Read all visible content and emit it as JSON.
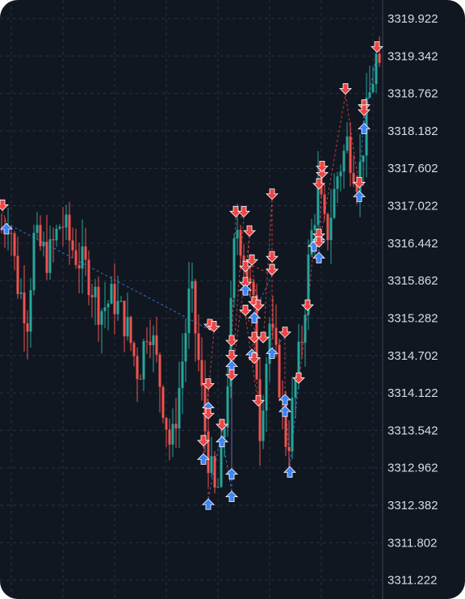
{
  "chart_data": {
    "type": "candlestick",
    "title": "",
    "xlabel": "",
    "ylabel": "",
    "ylim": [
      3310.93,
      3320.21
    ],
    "grid": true,
    "y_axis_side": "right",
    "y_tick_labels": [
      "3319.922",
      "3319.342",
      "3318.762",
      "3318.182",
      "3317.602",
      "3317.022",
      "3316.442",
      "3315.862",
      "3315.282",
      "3314.702",
      "3314.122",
      "3313.542",
      "3312.962",
      "3312.382",
      "3311.802",
      "3311.222"
    ],
    "colors": {
      "background": "#111721",
      "grid": "#2a313d",
      "up": "#26a69a",
      "down": "#ef5350",
      "buy_marker": "#3d84f7",
      "sell_marker": "#ef4545",
      "axis_text": "#d7dbe2"
    },
    "trade_markers": [
      {
        "type": "sell",
        "price": 3316.95
      },
      {
        "type": "buy",
        "price": 3316.75
      },
      {
        "type": "sell",
        "price": 3315.1
      },
      {
        "type": "sell",
        "price": 3315.07
      },
      {
        "type": "sell",
        "price": 3313.3
      },
      {
        "type": "buy",
        "price": 3313.18
      },
      {
        "type": "sell",
        "price": 3314.18
      },
      {
        "type": "buy",
        "price": 3313.98
      },
      {
        "type": "sell",
        "price": 3313.72
      },
      {
        "type": "buy",
        "price": 3312.48
      },
      {
        "type": "sell",
        "price": 3313.55
      },
      {
        "type": "buy",
        "price": 3313.45
      },
      {
        "type": "buy",
        "price": 3312.6
      },
      {
        "type": "sell",
        "price": 3314.62
      },
      {
        "type": "buy",
        "price": 3312.95
      },
      {
        "type": "buy",
        "price": 3314.62
      },
      {
        "type": "sell",
        "price": 3314.85
      },
      {
        "type": "sell",
        "price": 3316.85
      },
      {
        "type": "sell",
        "price": 3316.85
      },
      {
        "type": "sell",
        "price": 3314.32
      },
      {
        "type": "sell",
        "price": 3316.0
      },
      {
        "type": "sell",
        "price": 3316.55
      },
      {
        "type": "sell",
        "price": 3315.75
      },
      {
        "type": "buy",
        "price": 3315.8
      },
      {
        "type": "sell",
        "price": 3315.45
      },
      {
        "type": "buy",
        "price": 3315.37
      },
      {
        "type": "sell",
        "price": 3315.95
      },
      {
        "type": "sell",
        "price": 3316.1
      },
      {
        "type": "sell",
        "price": 3315.4
      },
      {
        "type": "buy",
        "price": 3314.8
      },
      {
        "type": "sell",
        "price": 3314.58
      },
      {
        "type": "sell",
        "price": 3314.9
      },
      {
        "type": "sell",
        "price": 3313.92
      },
      {
        "type": "sell",
        "price": 3315.32
      },
      {
        "type": "sell",
        "price": 3314.9
      },
      {
        "type": "sell",
        "price": 3317.12
      },
      {
        "type": "sell",
        "price": 3316.15
      },
      {
        "type": "sell",
        "price": 3315.95
      },
      {
        "type": "buy",
        "price": 3314.82
      },
      {
        "type": "sell",
        "price": 3314.98
      },
      {
        "type": "buy",
        "price": 3313.92
      },
      {
        "type": "buy",
        "price": 3314.1
      },
      {
        "type": "buy",
        "price": 3312.98
      },
      {
        "type": "sell",
        "price": 3314.27
      },
      {
        "type": "sell",
        "price": 3315.4
      },
      {
        "type": "buy",
        "price": 3316.48
      },
      {
        "type": "buy",
        "price": 3316.58
      },
      {
        "type": "sell",
        "price": 3316.5
      },
      {
        "type": "buy",
        "price": 3316.3
      },
      {
        "type": "sell",
        "price": 3317.45
      },
      {
        "type": "sell",
        "price": 3317.28
      },
      {
        "type": "sell",
        "price": 3317.55
      },
      {
        "type": "sell",
        "price": 3316.38
      },
      {
        "type": "sell",
        "price": 3318.75
      },
      {
        "type": "sell",
        "price": 3317.3
      },
      {
        "type": "buy",
        "price": 3317.25
      },
      {
        "type": "sell",
        "price": 3318.5
      },
      {
        "type": "sell",
        "price": 3318.42
      },
      {
        "type": "buy",
        "price": 3318.3
      },
      {
        "type": "sell",
        "price": 3319.4
      }
    ]
  }
}
